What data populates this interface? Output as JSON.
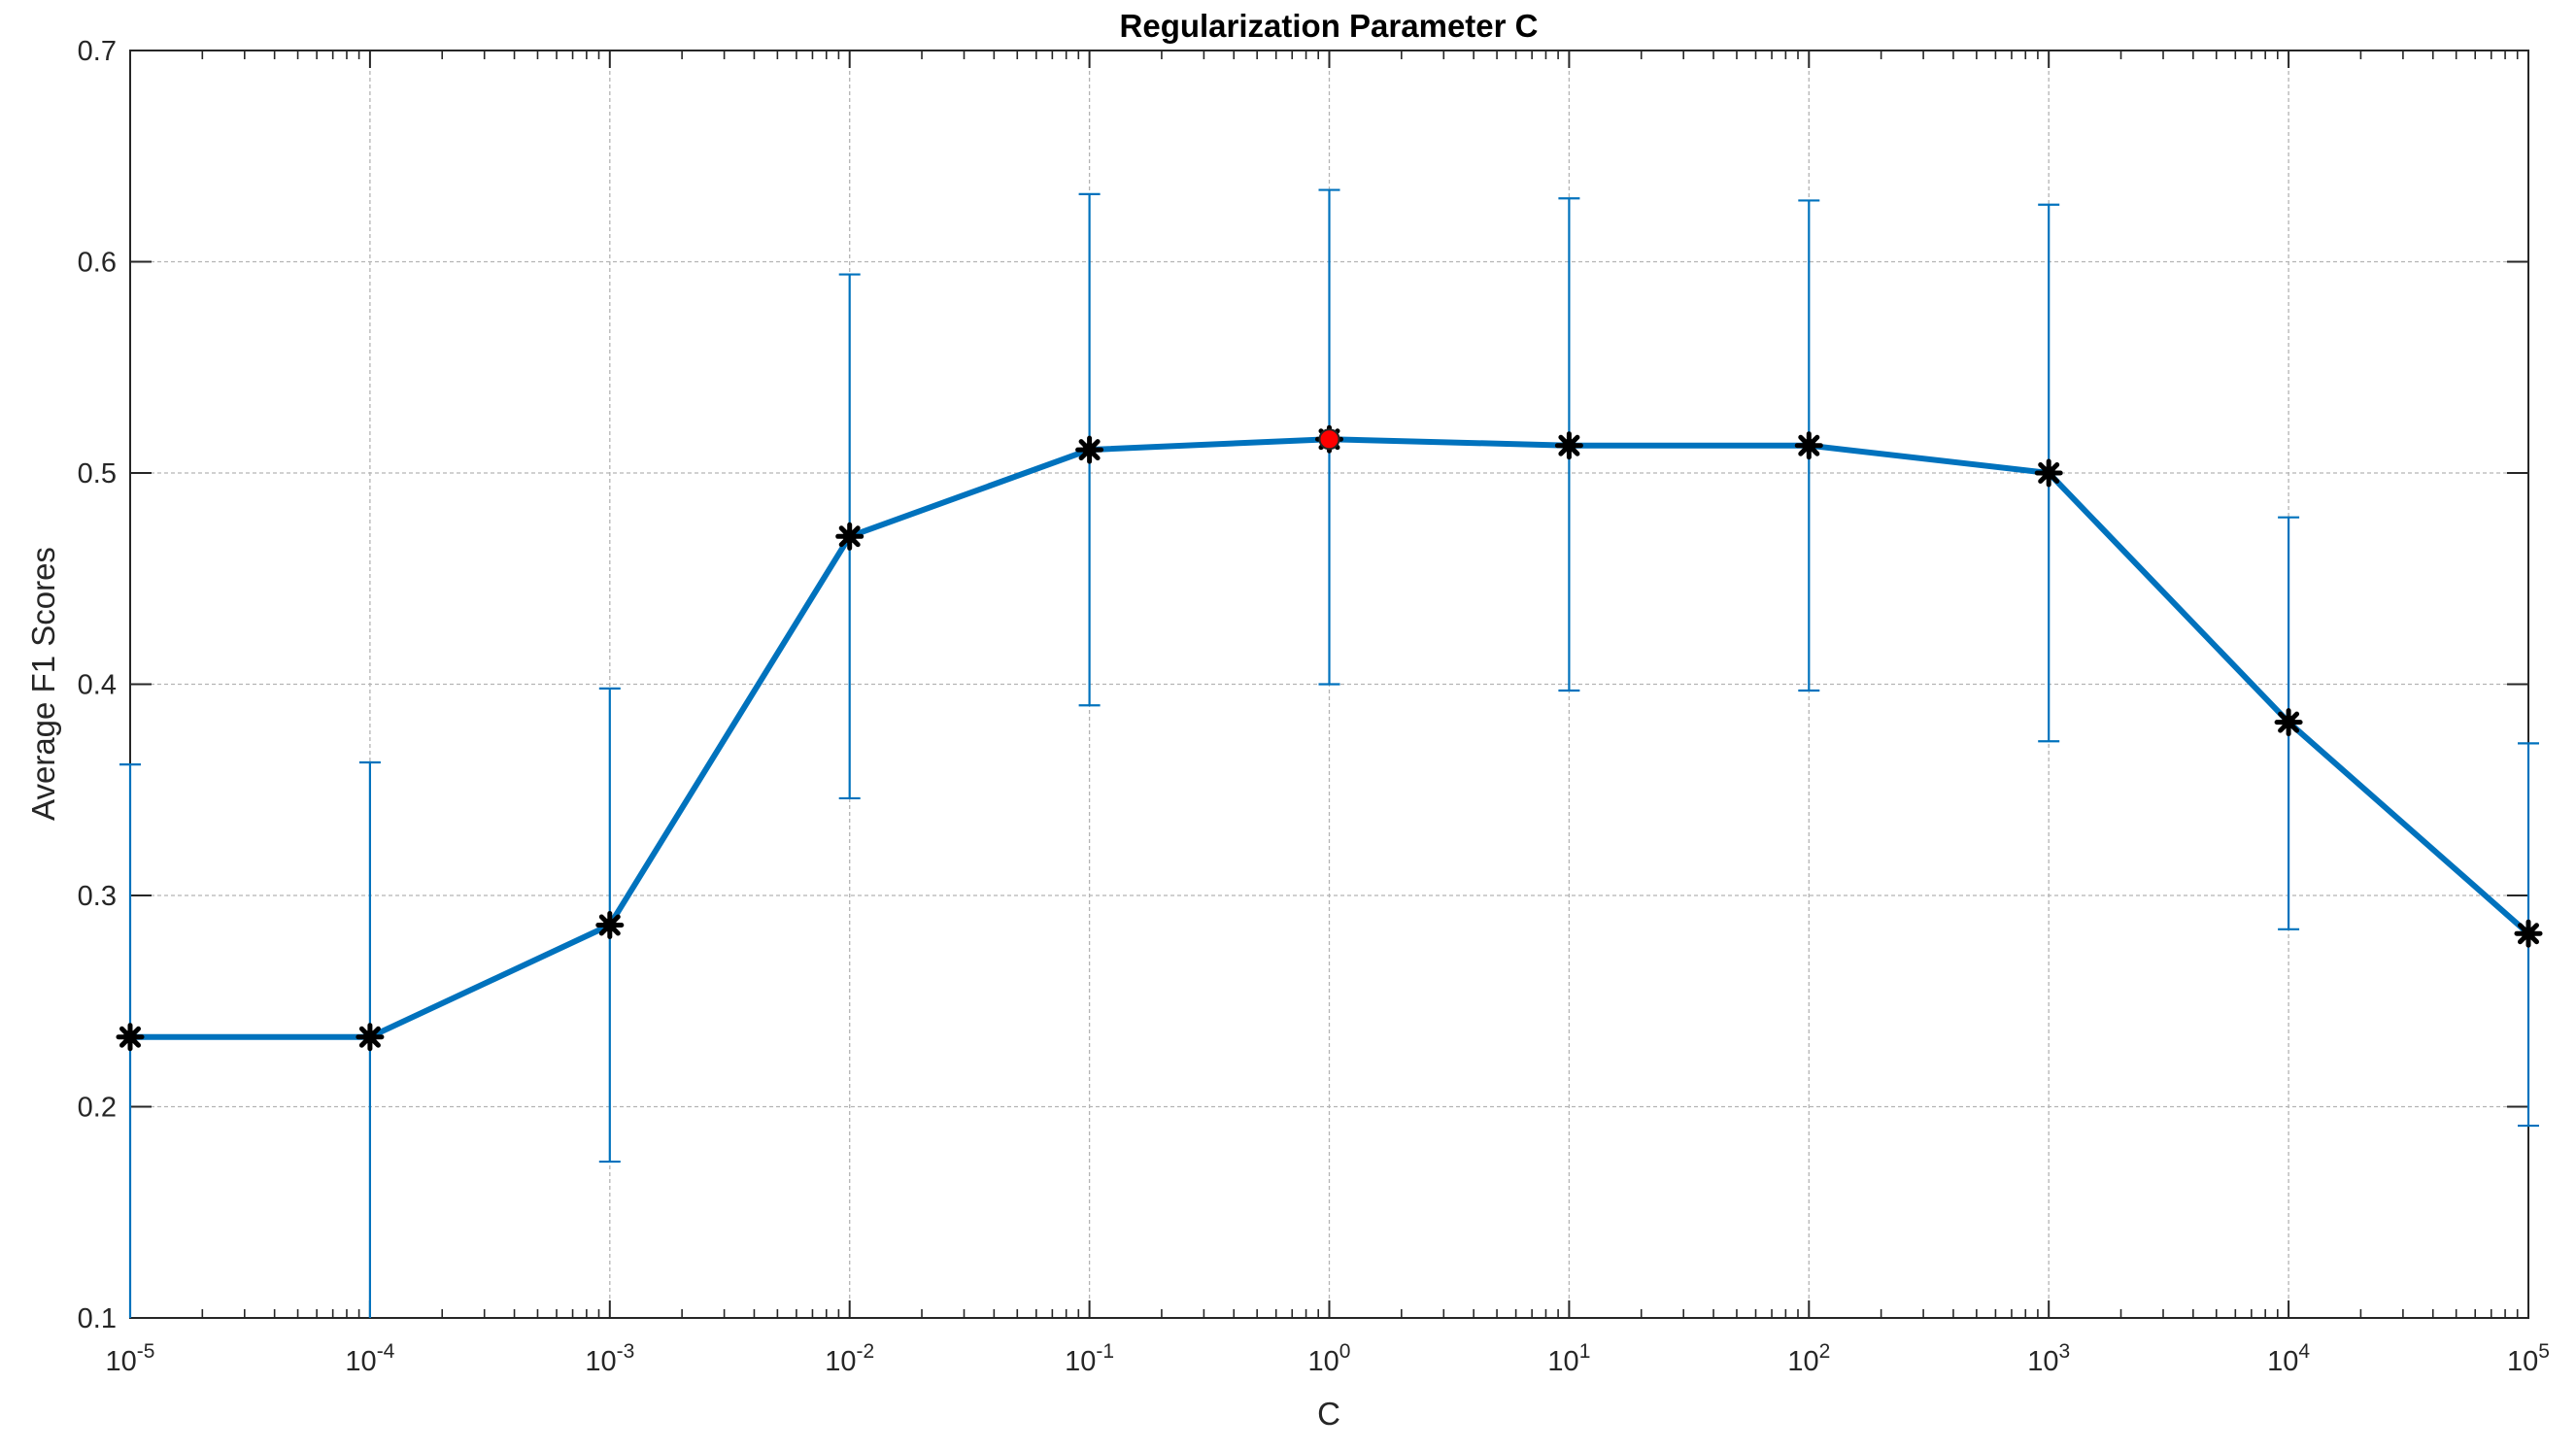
{
  "chart_data": {
    "type": "line",
    "title": "Regularization Parameter C",
    "xlabel": "C",
    "ylabel": "Average F1 Scores",
    "xscale": "log",
    "xlim": [
      1e-05,
      100000
    ],
    "ylim": [
      0.1,
      0.7
    ],
    "grid": true,
    "legend": "none",
    "x_tick_labels": [
      {
        "base": "10",
        "exp": "-5"
      },
      {
        "base": "10",
        "exp": "-4"
      },
      {
        "base": "10",
        "exp": "-3"
      },
      {
        "base": "10",
        "exp": "-2"
      },
      {
        "base": "10",
        "exp": "-1"
      },
      {
        "base": "10",
        "exp": "0"
      },
      {
        "base": "10",
        "exp": "1"
      },
      {
        "base": "10",
        "exp": "2"
      },
      {
        "base": "10",
        "exp": "3"
      },
      {
        "base": "10",
        "exp": "4"
      },
      {
        "base": "10",
        "exp": "5"
      }
    ],
    "y_tick_labels": [
      "0.1",
      "0.2",
      "0.3",
      "0.4",
      "0.5",
      "0.6",
      "0.7"
    ],
    "series": [
      {
        "color": "#0072BD",
        "marker_color": "#000000",
        "x": [
          1e-05,
          0.0001,
          0.001,
          0.01,
          0.1,
          1,
          10,
          100,
          1000,
          10000,
          100000
        ],
        "y": [
          0.233,
          0.233,
          0.286,
          0.47,
          0.511,
          0.516,
          0.513,
          0.513,
          0.5,
          0.382,
          0.282
        ],
        "error_low": [
          0.096,
          0.096,
          0.174,
          0.346,
          0.39,
          0.4,
          0.397,
          0.397,
          0.373,
          0.284,
          0.191
        ],
        "error_high": [
          0.362,
          0.363,
          0.398,
          0.594,
          0.632,
          0.634,
          0.63,
          0.629,
          0.627,
          0.479,
          0.372
        ]
      }
    ],
    "highlight": {
      "x": 1,
      "y": 0.516,
      "color": "#FF0000"
    }
  }
}
